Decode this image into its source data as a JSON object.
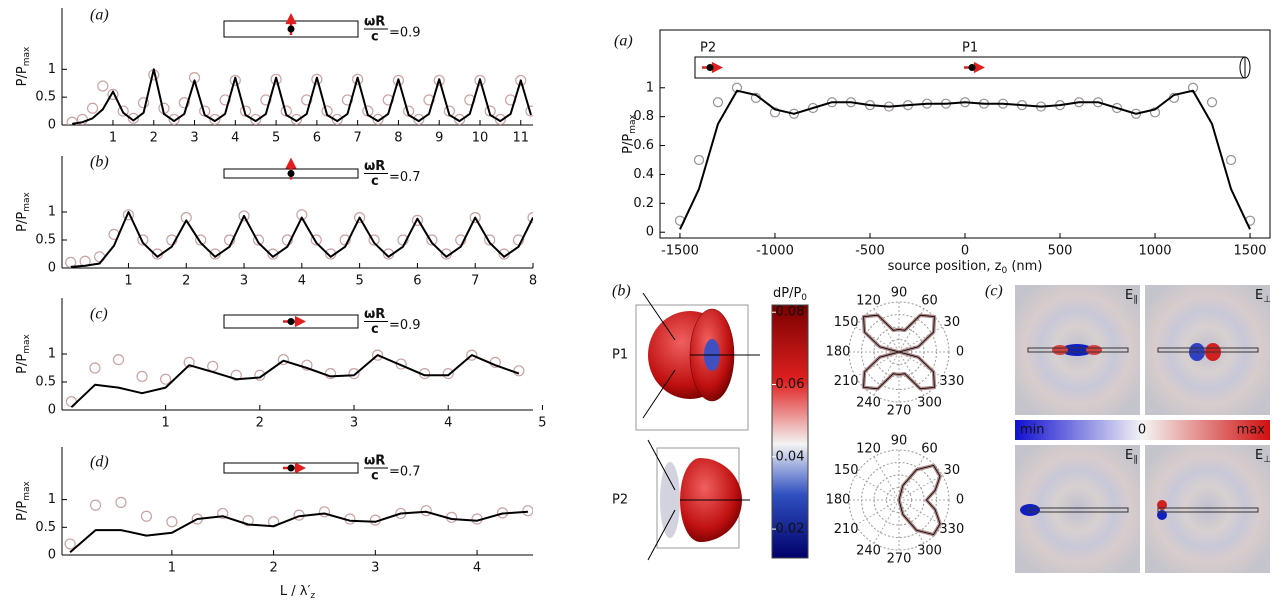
{
  "chart_data": [
    {
      "type": "line",
      "panel": "(a)",
      "ylabel": "P/P",
      "ylabel_sub": "max",
      "param_num": "ωR",
      "param_den": "c",
      "param_value": "=0.9",
      "dipole": "transverse",
      "xlim": [
        -0.25,
        11.3
      ],
      "ylim": [
        0,
        2.1
      ],
      "xticks": [
        1,
        2,
        3,
        4,
        5,
        6,
        7,
        8,
        9,
        10,
        11
      ],
      "yticks": [
        0,
        0.5,
        1
      ],
      "x": [
        0,
        0.25,
        0.5,
        0.75,
        1,
        1.25,
        1.5,
        1.75,
        2,
        2.25,
        2.5,
        2.75,
        3,
        3.25,
        3.5,
        3.75,
        4,
        4.25,
        4.5,
        4.75,
        5,
        5.25,
        5.5,
        5.75,
        6,
        6.25,
        6.5,
        6.75,
        7,
        7.25,
        7.5,
        7.75,
        8,
        8.25,
        8.5,
        8.75,
        9,
        9.25,
        9.5,
        9.75,
        10,
        10.25,
        10.5,
        10.75,
        11,
        11.25
      ],
      "series": [
        {
          "color": "#c9a3a3",
          "marker": "circle",
          "values": [
            0.05,
            0.1,
            0.3,
            0.7,
            0.55,
            0.25,
            0.12,
            0.4,
            0.9,
            0.3,
            0.1,
            0.4,
            0.85,
            0.25,
            0.1,
            0.45,
            0.8,
            0.25,
            0.1,
            0.45,
            0.82,
            0.25,
            0.1,
            0.45,
            0.82,
            0.25,
            0.1,
            0.45,
            0.82,
            0.25,
            0.1,
            0.45,
            0.8,
            0.25,
            0.1,
            0.45,
            0.8,
            0.25,
            0.1,
            0.45,
            0.8,
            0.25,
            0.1,
            0.45,
            0.8,
            0.25
          ]
        },
        {
          "color": "#000000",
          "values": [
            0.02,
            0.05,
            0.12,
            0.28,
            0.6,
            0.22,
            0.08,
            0.22,
            1.0,
            0.2,
            0.07,
            0.2,
            0.8,
            0.18,
            0.07,
            0.2,
            0.85,
            0.18,
            0.07,
            0.2,
            0.85,
            0.18,
            0.07,
            0.2,
            0.85,
            0.18,
            0.07,
            0.2,
            0.85,
            0.18,
            0.07,
            0.2,
            0.82,
            0.18,
            0.07,
            0.2,
            0.82,
            0.18,
            0.07,
            0.2,
            0.82,
            0.18,
            0.07,
            0.2,
            0.8,
            0.18
          ]
        }
      ]
    },
    {
      "type": "line",
      "panel": "(b)",
      "ylabel": "P/P",
      "ylabel_sub": "max",
      "param_num": "ωR",
      "param_den": "c",
      "param_value": "=0.7",
      "dipole": "transverse",
      "xlim": [
        -0.15,
        8.0
      ],
      "ylim": [
        0,
        2.0
      ],
      "xticks": [
        1,
        2,
        3,
        4,
        5,
        6,
        7,
        8
      ],
      "yticks": [
        0,
        0.5,
        1
      ],
      "x": [
        0,
        0.25,
        0.5,
        0.75,
        1,
        1.25,
        1.5,
        1.75,
        2,
        2.25,
        2.5,
        2.75,
        3,
        3.25,
        3.5,
        3.75,
        4,
        4.25,
        4.5,
        4.75,
        5,
        5.25,
        5.5,
        5.75,
        6,
        6.25,
        6.5,
        6.75,
        7,
        7.25,
        7.5,
        7.75,
        8
      ],
      "series": [
        {
          "color": "#c9a3a3",
          "marker": "circle",
          "values": [
            0.1,
            0.12,
            0.2,
            0.6,
            0.95,
            0.5,
            0.25,
            0.5,
            0.9,
            0.5,
            0.25,
            0.5,
            0.93,
            0.5,
            0.25,
            0.5,
            0.95,
            0.5,
            0.25,
            0.5,
            0.9,
            0.5,
            0.25,
            0.5,
            0.85,
            0.5,
            0.25,
            0.5,
            0.9,
            0.5,
            0.25,
            0.5,
            0.9
          ]
        },
        {
          "color": "#000000",
          "values": [
            0.02,
            0.04,
            0.08,
            0.4,
            1.0,
            0.45,
            0.2,
            0.38,
            0.85,
            0.45,
            0.2,
            0.38,
            0.93,
            0.45,
            0.2,
            0.38,
            0.9,
            0.45,
            0.2,
            0.38,
            0.9,
            0.45,
            0.2,
            0.38,
            0.88,
            0.45,
            0.2,
            0.38,
            0.9,
            0.45,
            0.2,
            0.38,
            0.9
          ]
        }
      ]
    },
    {
      "type": "line",
      "panel": "(c)",
      "ylabel": "P/P",
      "ylabel_sub": "max",
      "param_num": "ωR",
      "param_den": "c",
      "param_value": "=0.9",
      "dipole": "axial",
      "xlim": [
        -0.1,
        4.9
      ],
      "ylim": [
        0,
        2.0
      ],
      "xticks": [
        1,
        2,
        3,
        4,
        5
      ],
      "yticks": [
        0,
        0.5,
        1
      ],
      "x": [
        0,
        0.25,
        0.5,
        0.75,
        1,
        1.25,
        1.5,
        1.75,
        2,
        2.25,
        2.5,
        2.75,
        3,
        3.25,
        3.5,
        3.75,
        4,
        4.25,
        4.5,
        4.75
      ],
      "series": [
        {
          "color": "#c9a3a3",
          "marker": "circle",
          "values": [
            0.15,
            0.75,
            0.9,
            0.6,
            0.55,
            0.85,
            0.78,
            0.62,
            0.62,
            0.9,
            0.8,
            0.65,
            0.65,
            0.98,
            0.82,
            0.65,
            0.65,
            0.98,
            0.85,
            0.7
          ]
        },
        {
          "color": "#000000",
          "values": [
            0.05,
            0.45,
            0.4,
            0.3,
            0.4,
            0.8,
            0.68,
            0.55,
            0.58,
            0.88,
            0.75,
            0.6,
            0.62,
            0.98,
            0.8,
            0.62,
            0.62,
            0.98,
            0.8,
            0.65
          ]
        }
      ]
    },
    {
      "type": "line",
      "panel": "(d)",
      "ylabel": "P/P",
      "ylabel_sub": "max",
      "param_num": "ωR",
      "param_den": "c",
      "param_value": "=0.7",
      "dipole": "axial",
      "xlabel": "L / λ′",
      "xlabel_sub": "z",
      "xlim": [
        -0.08,
        4.55
      ],
      "ylim": [
        0,
        1.95
      ],
      "xticks": [
        1,
        2,
        3,
        4
      ],
      "yticks": [
        0,
        0.5,
        1
      ],
      "x": [
        0,
        0.25,
        0.5,
        0.75,
        1,
        1.25,
        1.5,
        1.75,
        2,
        2.25,
        2.5,
        2.75,
        3,
        3.25,
        3.5,
        3.75,
        4,
        4.25,
        4.5
      ],
      "series": [
        {
          "color": "#c9a3a3",
          "marker": "circle",
          "values": [
            0.2,
            0.9,
            0.95,
            0.7,
            0.6,
            0.65,
            0.75,
            0.62,
            0.6,
            0.72,
            0.78,
            0.65,
            0.63,
            0.75,
            0.8,
            0.68,
            0.65,
            0.76,
            0.8
          ]
        },
        {
          "color": "#000000",
          "values": [
            0.05,
            0.45,
            0.45,
            0.35,
            0.4,
            0.65,
            0.7,
            0.55,
            0.52,
            0.7,
            0.75,
            0.62,
            0.6,
            0.75,
            0.78,
            0.65,
            0.62,
            0.75,
            0.78
          ]
        }
      ]
    },
    {
      "type": "line",
      "panel": "(a)",
      "ylabel": "P/P",
      "ylabel_sub": "max",
      "xlabel": "source position, z",
      "xlabel_sub": "0",
      "xlabel_unit": " (nm)",
      "p1": "P1",
      "p2": "P2",
      "box": true,
      "xlim": [
        -1605,
        1605
      ],
      "ylim": [
        -0.04,
        1.4
      ],
      "xticks": [
        -1500,
        -1000,
        -500,
        0,
        500,
        1000,
        1500
      ],
      "yticks": [
        0,
        0.2,
        0.4,
        0.6,
        0.8,
        1
      ],
      "x": [
        -1500,
        -1400,
        -1300,
        -1200,
        -1100,
        -1000,
        -900,
        -800,
        -700,
        -600,
        -500,
        -400,
        -300,
        -200,
        -100,
        0,
        100,
        200,
        300,
        400,
        500,
        600,
        700,
        800,
        900,
        1000,
        1100,
        1200,
        1300,
        1400,
        1500
      ],
      "series": [
        {
          "color": "#9a9090",
          "marker": "circle",
          "values": [
            0.08,
            0.5,
            0.9,
            1.0,
            0.93,
            0.83,
            0.82,
            0.86,
            0.9,
            0.9,
            0.88,
            0.87,
            0.88,
            0.89,
            0.89,
            0.9,
            0.89,
            0.89,
            0.88,
            0.87,
            0.88,
            0.9,
            0.9,
            0.86,
            0.82,
            0.83,
            0.93,
            1.0,
            0.9,
            0.5,
            0.08
          ]
        },
        {
          "color": "#000000",
          "values": [
            0.02,
            0.3,
            0.75,
            0.98,
            0.95,
            0.85,
            0.82,
            0.86,
            0.9,
            0.9,
            0.88,
            0.87,
            0.88,
            0.89,
            0.89,
            0.9,
            0.89,
            0.89,
            0.88,
            0.87,
            0.88,
            0.9,
            0.9,
            0.86,
            0.82,
            0.85,
            0.95,
            0.98,
            0.75,
            0.3,
            0.02
          ]
        }
      ]
    },
    {
      "type": "colorbar",
      "label": "dP/P",
      "label_sub": "0",
      "clim": [
        0.012,
        0.082
      ],
      "ticks": [
        0.02,
        0.04,
        0.06,
        0.08
      ]
    },
    {
      "type": "polar",
      "theta": [
        0,
        15,
        30,
        45,
        60,
        75,
        90,
        105,
        120,
        135,
        150,
        165,
        180,
        195,
        210,
        225,
        240,
        255,
        270,
        285,
        300,
        315,
        330,
        345
      ],
      "values": [
        0,
        0.4,
        0.8,
        1,
        0.85,
        0.45,
        0.45,
        0.45,
        0.85,
        1,
        0.8,
        0.4,
        0,
        0.4,
        0.8,
        1,
        0.85,
        0.45,
        0.45,
        0.45,
        0.85,
        1,
        0.8,
        0.4
      ],
      "angleticks": [
        0,
        30,
        60,
        90,
        120,
        150,
        180,
        210,
        240,
        270,
        300,
        330
      ],
      "color": "#b08888"
    },
    {
      "type": "polar",
      "theta": [
        0,
        15,
        30,
        45,
        60,
        75,
        90,
        105,
        120,
        135,
        150,
        165,
        180,
        195,
        210,
        225,
        240,
        255,
        270,
        285,
        300,
        315,
        330,
        345
      ],
      "values": [
        0.55,
        0.75,
        0.95,
        0.98,
        0.7,
        0.3,
        0,
        0,
        0,
        0,
        0,
        0,
        0,
        0,
        0,
        0,
        0,
        0,
        0,
        0.3,
        0.7,
        0.98,
        0.95,
        0.75
      ],
      "angleticks": [
        0,
        30,
        60,
        90,
        120,
        150,
        180,
        210,
        240,
        270,
        300,
        330
      ],
      "color": "#b08888"
    }
  ],
  "figure": {
    "panel_b": "(b)",
    "panel_c": "(c)",
    "p1": "P1",
    "p2": "P2",
    "fields": [
      {
        "label": "E",
        "sub": "∥"
      },
      {
        "label": "E",
        "sub": "⊥"
      },
      {
        "label": "E",
        "sub": "∥"
      },
      {
        "label": "E",
        "sub": "⊥"
      }
    ],
    "strip": [
      "min",
      "0",
      "max"
    ]
  }
}
